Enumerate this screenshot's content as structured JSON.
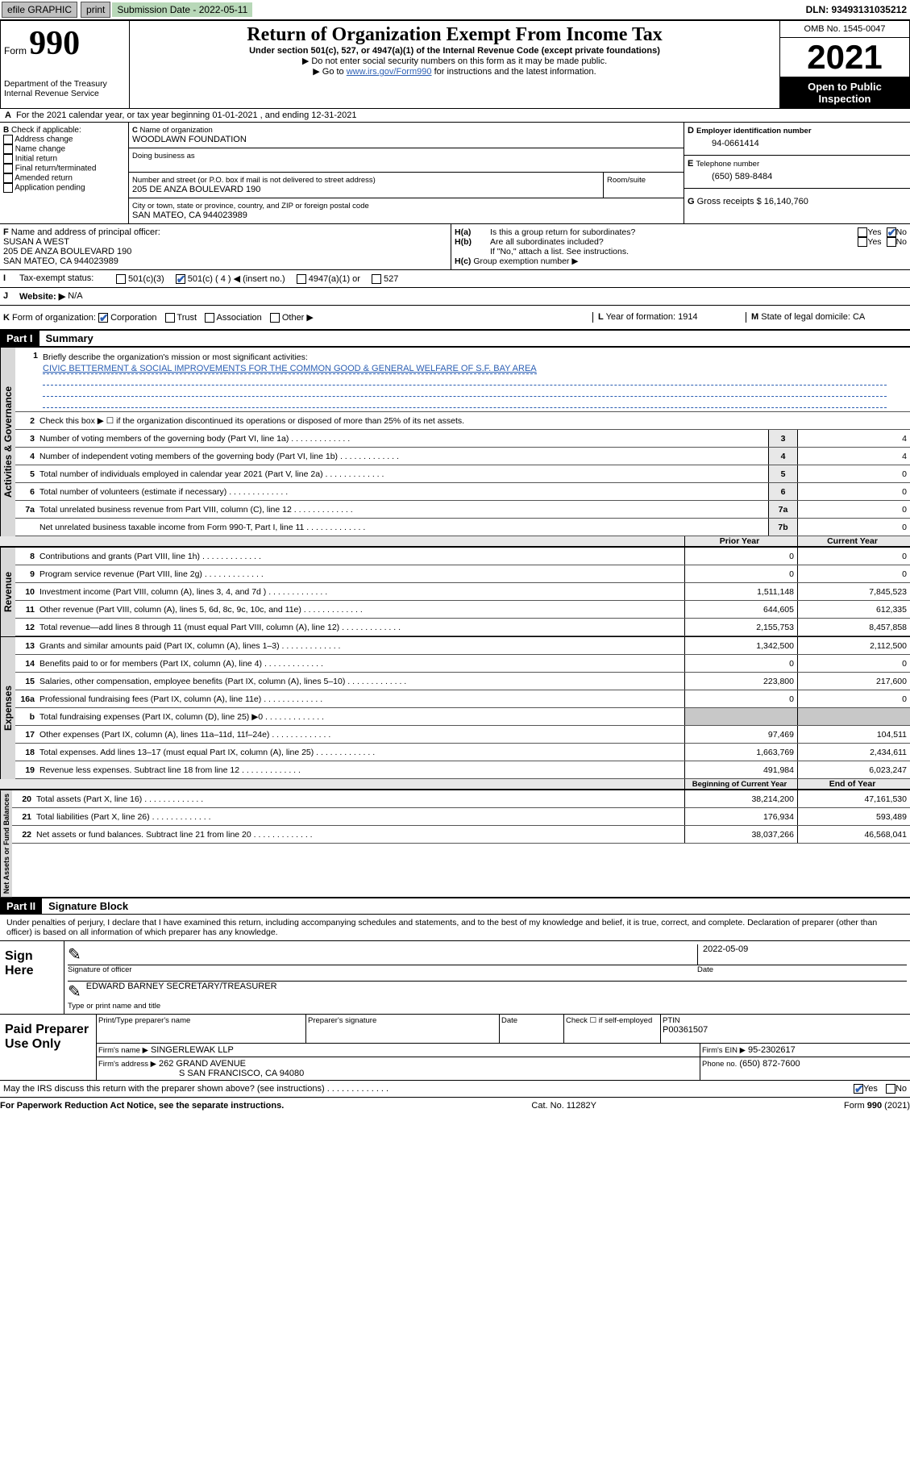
{
  "topbar": {
    "efile": "efile GRAPHIC",
    "print": "print",
    "sub_label": "Submission Date - 2022-05-11",
    "dln": "DLN: 93493131035212"
  },
  "header": {
    "form_prefix": "Form",
    "form_number": "990",
    "dept": "Department of the Treasury\nInternal Revenue Service",
    "title": "Return of Organization Exempt From Income Tax",
    "subtitle": "Under section 501(c), 527, or 4947(a)(1) of the Internal Revenue Code (except private foundations)",
    "instr1": "▶ Do not enter social security numbers on this form as it may be made public.",
    "instr2_pre": "▶ Go to ",
    "instr2_link": "www.irs.gov/Form990",
    "instr2_post": " for instructions and the latest information.",
    "omb": "OMB No. 1545-0047",
    "year": "2021",
    "open_pub": "Open to Public Inspection"
  },
  "period": {
    "line": "For the 2021 calendar year, or tax year beginning 01-01-2021   , and ending 12-31-2021"
  },
  "boxB": {
    "label": "Check if applicable:",
    "opts": [
      "Address change",
      "Name change",
      "Initial return",
      "Final return/terminated",
      "Amended return",
      "Application pending"
    ]
  },
  "boxC": {
    "name_label": "Name of organization",
    "name": "WOODLAWN FOUNDATION",
    "dba_label": "Doing business as",
    "addr_label": "Number and street (or P.O. box if mail is not delivered to street address)",
    "room_label": "Room/suite",
    "addr": "205 DE ANZA BOULEVARD 190",
    "city_label": "City or town, state or province, country, and ZIP or foreign postal code",
    "city": "SAN MATEO, CA  944023989"
  },
  "boxD": {
    "label": "Employer identification number",
    "val": "94-0661414"
  },
  "boxE": {
    "label": "Telephone number",
    "val": "(650) 589-8484"
  },
  "boxG": {
    "label": "Gross receipts $",
    "val": "16,140,760"
  },
  "boxF": {
    "label": "Name and address of principal officer:",
    "name": "SUSAN A WEST",
    "addr1": "205 DE ANZA BOULEVARD 190",
    "addr2": "SAN MATEO, CA  944023989"
  },
  "boxH": {
    "a": "Is this a group return for subordinates?",
    "b": "Are all subordinates included?",
    "note": "If \"No,\" attach a list. See instructions.",
    "c": "Group exemption number ▶"
  },
  "boxI": {
    "label": "Tax-exempt status:",
    "opts": [
      "501(c)(3)",
      "501(c) ( 4 ) ◀ (insert no.)",
      "4947(a)(1) or",
      "527"
    ]
  },
  "boxJ": {
    "label": "Website: ▶",
    "val": "N/A"
  },
  "boxK": {
    "label": "Form of organization:",
    "opts": [
      "Corporation",
      "Trust",
      "Association",
      "Other ▶"
    ]
  },
  "boxL": {
    "label": "Year of formation:",
    "val": "1914"
  },
  "boxM": {
    "label": "State of legal domicile:",
    "val": "CA"
  },
  "part1": {
    "num": "Part I",
    "title": "Summary"
  },
  "line1": {
    "label": "Briefly describe the organization's mission or most significant activities:",
    "val": "CIVIC BETTERMENT & SOCIAL IMPROVEMENTS FOR THE COMMON GOOD & GENERAL WELFARE OF S.F. BAY AREA"
  },
  "line2": "Check this box ▶ ☐  if the organization discontinued its operations or disposed of more than 25% of its net assets.",
  "gov_lines": [
    {
      "n": "3",
      "d": "Number of voting members of the governing body (Part VI, line 1a)",
      "box": "3",
      "v": "4"
    },
    {
      "n": "4",
      "d": "Number of independent voting members of the governing body (Part VI, line 1b)",
      "box": "4",
      "v": "4"
    },
    {
      "n": "5",
      "d": "Total number of individuals employed in calendar year 2021 (Part V, line 2a)",
      "box": "5",
      "v": "0"
    },
    {
      "n": "6",
      "d": "Total number of volunteers (estimate if necessary)",
      "box": "6",
      "v": "0"
    },
    {
      "n": "7a",
      "d": "Total unrelated business revenue from Part VIII, column (C), line 12",
      "box": "7a",
      "v": "0"
    },
    {
      "n": "",
      "d": "Net unrelated business taxable income from Form 990-T, Part I, line 11",
      "box": "7b",
      "v": "0"
    }
  ],
  "rev_header": {
    "prior": "Prior Year",
    "current": "Current Year"
  },
  "rev_lines": [
    {
      "n": "8",
      "d": "Contributions and grants (Part VIII, line 1h)",
      "p": "0",
      "c": "0"
    },
    {
      "n": "9",
      "d": "Program service revenue (Part VIII, line 2g)",
      "p": "0",
      "c": "0"
    },
    {
      "n": "10",
      "d": "Investment income (Part VIII, column (A), lines 3, 4, and 7d )",
      "p": "1,511,148",
      "c": "7,845,523"
    },
    {
      "n": "11",
      "d": "Other revenue (Part VIII, column (A), lines 5, 6d, 8c, 9c, 10c, and 11e)",
      "p": "644,605",
      "c": "612,335"
    },
    {
      "n": "12",
      "d": "Total revenue—add lines 8 through 11 (must equal Part VIII, column (A), line 12)",
      "p": "2,155,753",
      "c": "8,457,858"
    }
  ],
  "exp_lines": [
    {
      "n": "13",
      "d": "Grants and similar amounts paid (Part IX, column (A), lines 1–3)",
      "p": "1,342,500",
      "c": "2,112,500"
    },
    {
      "n": "14",
      "d": "Benefits paid to or for members (Part IX, column (A), line 4)",
      "p": "0",
      "c": "0"
    },
    {
      "n": "15",
      "d": "Salaries, other compensation, employee benefits (Part IX, column (A), lines 5–10)",
      "p": "223,800",
      "c": "217,600"
    },
    {
      "n": "16a",
      "d": "Professional fundraising fees (Part IX, column (A), line 11e)",
      "p": "0",
      "c": "0"
    },
    {
      "n": "b",
      "d": "Total fundraising expenses (Part IX, column (D), line 25) ▶0",
      "p": "",
      "c": "",
      "shade": true
    },
    {
      "n": "17",
      "d": "Other expenses (Part IX, column (A), lines 11a–11d, 11f–24e)",
      "p": "97,469",
      "c": "104,511"
    },
    {
      "n": "18",
      "d": "Total expenses. Add lines 13–17 (must equal Part IX, column (A), line 25)",
      "p": "1,663,769",
      "c": "2,434,611"
    },
    {
      "n": "19",
      "d": "Revenue less expenses. Subtract line 18 from line 12",
      "p": "491,984",
      "c": "6,023,247"
    }
  ],
  "net_header": {
    "begin": "Beginning of Current Year",
    "end": "End of Year"
  },
  "net_lines": [
    {
      "n": "20",
      "d": "Total assets (Part X, line 16)",
      "p": "38,214,200",
      "c": "47,161,530"
    },
    {
      "n": "21",
      "d": "Total liabilities (Part X, line 26)",
      "p": "176,934",
      "c": "593,489"
    },
    {
      "n": "22",
      "d": "Net assets or fund balances. Subtract line 21 from line 20",
      "p": "38,037,266",
      "c": "46,568,041"
    }
  ],
  "part2": {
    "num": "Part II",
    "title": "Signature Block"
  },
  "sig": {
    "decl": "Under penalties of perjury, I declare that I have examined this return, including accompanying schedules and statements, and to the best of my knowledge and belief, it is true, correct, and complete. Declaration of preparer (other than officer) is based on all information of which preparer has any knowledge.",
    "sign_here": "Sign Here",
    "sig_officer": "Signature of officer",
    "date": "Date",
    "date_val": "2022-05-09",
    "officer_name": "EDWARD BARNEY  SECRETARY/TREASURER",
    "type_name": "Type or print name and title"
  },
  "paid": {
    "label": "Paid Preparer Use Only",
    "h1": "Print/Type preparer's name",
    "h2": "Preparer's signature",
    "h3": "Date",
    "h4_pre": "Check ☐ if self-employed",
    "h5": "PTIN",
    "ptin": "P00361507",
    "firm_label": "Firm's name   ▶",
    "firm": "SINGERLEWAK LLP",
    "ein_label": "Firm's EIN ▶",
    "ein": "95-2302617",
    "addr_label": "Firm's address ▶",
    "addr1": "262 GRAND AVENUE",
    "addr2": "S SAN FRANCISCO, CA  94080",
    "phone_label": "Phone no.",
    "phone": "(650) 872-7600"
  },
  "discuss": "May the IRS discuss this return with the preparer shown above? (see instructions)",
  "footer": {
    "left": "For Paperwork Reduction Act Notice, see the separate instructions.",
    "mid": "Cat. No. 11282Y",
    "right": "Form 990 (2021)"
  },
  "vtabs": {
    "gov": "Activities & Governance",
    "rev": "Revenue",
    "exp": "Expenses",
    "net": "Net Assets or Fund Balances"
  },
  "yes": "Yes",
  "no": "No",
  "letters": {
    "A": "A",
    "B": "B",
    "C": "C",
    "D": "D",
    "E": "E",
    "F": "F",
    "G": "G",
    "H_a": "H(a)",
    "H_b": "H(b)",
    "H_c": "H(c)",
    "I": "I",
    "J": "J",
    "K": "K",
    "L": "L",
    "M": "M"
  }
}
